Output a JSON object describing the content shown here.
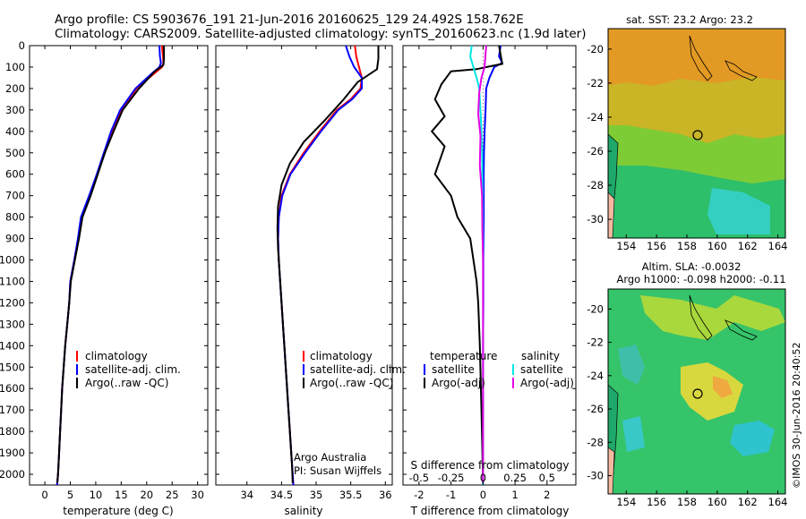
{
  "header": {
    "line1": "Argo profile: CS 5903676_191 21-Jun-2016 20160625_129 24.492S 158.762E",
    "line2": "Climatology: CARS2009. Satellite-adjusted climatology: synTS_20160623.nc (1.9d later)"
  },
  "colors": {
    "climatology": "#ff0000",
    "satellite": "#0000ff",
    "argo": "#000000",
    "sal_satellite": "#00e5e5",
    "sal_argo": "#e600e6"
  },
  "depth_ticks": [
    "0",
    "100",
    "200",
    "300",
    "400",
    "500",
    "600",
    "700",
    "800",
    "900",
    "1000",
    "1100",
    "1200",
    "1300",
    "1400",
    "1500",
    "1600",
    "1700",
    "1800",
    "1900",
    "2000"
  ],
  "chart_data": [
    {
      "type": "line",
      "xlabel": "temperature (deg C)",
      "xticks": [
        "0",
        "5",
        "10",
        "15",
        "20",
        "25",
        "30"
      ],
      "xlim": [
        -3,
        32
      ],
      "ylim": [
        0,
        2050
      ],
      "y_reversed": true,
      "legend": {
        "placement": "lower-left",
        "entries": [
          "climatology",
          "satellite-adj. clim.",
          "Argo(..raw -QC)"
        ]
      },
      "series": [
        {
          "name": "climatology",
          "x": [
            23.0,
            23.2,
            23.3,
            23.0,
            21.5,
            18.0,
            15.0,
            13.2,
            11.8,
            10.3,
            8.8,
            7.2,
            6.6,
            5.8,
            5.0,
            4.8,
            4.4,
            4.0,
            3.7,
            3.4,
            3.2,
            3.0,
            2.8,
            2.6,
            2.4
          ],
          "y": [
            0,
            50,
            80,
            100,
            130,
            200,
            300,
            400,
            500,
            600,
            700,
            800,
            900,
            1000,
            1100,
            1200,
            1300,
            1400,
            1500,
            1600,
            1700,
            1800,
            1900,
            2000,
            2050
          ]
        },
        {
          "name": "satellite-adj. clim.",
          "x": [
            22.5,
            22.6,
            22.8,
            22.5,
            21.0,
            17.8,
            14.8,
            13.0,
            11.6,
            10.2,
            8.7,
            7.1,
            6.5,
            5.8,
            5.0,
            4.8,
            4.4,
            4.0,
            3.7,
            3.4,
            3.2,
            3.0,
            2.8,
            2.6,
            2.4
          ],
          "y": [
            0,
            50,
            80,
            100,
            130,
            200,
            300,
            400,
            500,
            600,
            700,
            800,
            900,
            1000,
            1100,
            1200,
            1300,
            1400,
            1500,
            1600,
            1700,
            1800,
            1900,
            2000,
            2050
          ]
        },
        {
          "name": "Argo(..raw -QC)",
          "x": [
            23.4,
            23.4,
            23.3,
            21.6,
            18.5,
            15.3,
            13.5,
            11.8,
            10.4,
            9.0,
            7.4,
            6.7,
            5.9,
            5.1,
            4.8,
            4.4,
            4.0,
            3.7,
            3.4,
            3.2,
            3.0,
            2.8,
            2.6,
            2.45
          ],
          "y": [
            0,
            60,
            90,
            120,
            200,
            300,
            400,
            500,
            600,
            700,
            800,
            900,
            1000,
            1100,
            1200,
            1300,
            1400,
            1500,
            1600,
            1700,
            1800,
            1900,
            2000,
            2040
          ]
        }
      ]
    },
    {
      "type": "line",
      "xlabel": "salinity",
      "xticks": [
        "34",
        "34.5",
        "35",
        "35.5",
        "36"
      ],
      "xlim": [
        33.55,
        36.1
      ],
      "ylim": [
        0,
        2050
      ],
      "y_reversed": true,
      "legend": {
        "placement": "lower-right",
        "entries": [
          "climatology",
          "satellite-adj. clim.",
          "Argo(..raw -QC)"
        ]
      },
      "annotations": [
        "Argo Australia",
        "PI: Susan Wijffels"
      ],
      "series": [
        {
          "name": "climatology",
          "x": [
            35.56,
            35.58,
            35.62,
            35.66,
            35.64,
            35.5,
            35.3,
            35.05,
            34.82,
            34.62,
            34.5,
            34.46,
            34.45,
            34.46,
            34.48,
            34.5,
            34.52,
            34.54,
            34.56,
            34.58,
            34.6,
            34.62,
            34.64,
            34.66,
            34.67
          ],
          "y": [
            0,
            50,
            100,
            150,
            200,
            250,
            300,
            400,
            500,
            600,
            700,
            800,
            900,
            1000,
            1100,
            1200,
            1300,
            1400,
            1500,
            1600,
            1700,
            1800,
            1900,
            2000,
            2050
          ]
        },
        {
          "name": "satellite-adj. clim.",
          "x": [
            35.43,
            35.48,
            35.55,
            35.66,
            35.66,
            35.52,
            35.32,
            35.07,
            34.84,
            34.63,
            34.51,
            34.46,
            34.45,
            34.46,
            34.48,
            34.5,
            34.52,
            34.54,
            34.56,
            34.58,
            34.6,
            34.62,
            34.64,
            34.66,
            34.67
          ],
          "y": [
            0,
            50,
            100,
            150,
            200,
            250,
            300,
            400,
            500,
            600,
            700,
            800,
            900,
            1000,
            1100,
            1200,
            1300,
            1400,
            1500,
            1600,
            1700,
            1800,
            1900,
            2000,
            2050
          ]
        },
        {
          "name": "Argo(..raw -QC)",
          "x": [
            35.9,
            35.9,
            35.88,
            35.6,
            35.4,
            35.12,
            34.82,
            34.62,
            34.5,
            34.45,
            34.44,
            34.45,
            34.47,
            34.49,
            34.51,
            34.53,
            34.55,
            34.57,
            34.59,
            34.61,
            34.63,
            34.65,
            34.66
          ],
          "y": [
            0,
            60,
            110,
            170,
            250,
            350,
            450,
            550,
            650,
            750,
            850,
            950,
            1050,
            1150,
            1250,
            1350,
            1450,
            1550,
            1650,
            1750,
            1850,
            1950,
            2040
          ]
        }
      ]
    },
    {
      "type": "line",
      "xlabel": "T difference from climatology",
      "xlabel_top": "S difference from climatology",
      "xticks": [
        "-2",
        "-1",
        "0",
        "1",
        "2"
      ],
      "xticks_top": [
        "-0.5",
        "-0.25",
        "0",
        "0.25",
        "0.5"
      ],
      "xlim": [
        -2.5,
        2.9
      ],
      "ylim": [
        0,
        2050
      ],
      "y_reversed": true,
      "legend": {
        "placement": "lower",
        "entries": [
          "temperature",
          "satellite",
          "Argo(-adj)",
          "salinity",
          "satellite",
          "Argo(-adj)"
        ]
      },
      "series": [
        {
          "name": "satellite",
          "group": "temperature",
          "x": [
            0.55,
            0.5,
            0.6,
            0.35,
            0.2,
            0.1,
            0.08,
            0.05,
            0.03,
            0.02,
            0.02,
            0.01,
            0.01,
            0.0,
            0.0,
            0.0,
            0.0,
            0.0,
            0.0
          ],
          "y": [
            0,
            50,
            80,
            100,
            150,
            200,
            300,
            400,
            500,
            600,
            800,
            1000,
            1200,
            1400,
            1600,
            1800,
            1900,
            2000,
            2050
          ]
        },
        {
          "name": "Argo(-adj)",
          "group": "temperature",
          "x": [
            0.5,
            0.6,
            0.1,
            -0.2,
            -1.0,
            -1.3,
            -1.5,
            -1.2,
            -1.6,
            -1.2,
            -1.5,
            -1.0,
            -0.8,
            -0.4,
            -0.2,
            -0.15,
            -0.1,
            -0.05,
            0.0
          ],
          "y": [
            0,
            85,
            100,
            110,
            120,
            180,
            250,
            330,
            400,
            470,
            600,
            700,
            800,
            900,
            1100,
            1200,
            1400,
            1700,
            2040
          ]
        },
        {
          "name": "satellite",
          "group": "salinity",
          "x": [
            -0.35,
            -0.4,
            -0.3,
            -0.2,
            -0.12,
            -0.08,
            -0.05,
            -0.03,
            -0.02,
            -0.01,
            0.0,
            0.0,
            0.0,
            0.0
          ],
          "y": [
            0,
            50,
            100,
            150,
            200,
            300,
            400,
            500,
            600,
            800,
            1000,
            1400,
            1800,
            2050
          ]
        },
        {
          "name": "Argo(-adj)",
          "group": "salinity",
          "x": [
            0.1,
            0.05,
            -0.05,
            -0.12,
            -0.15,
            -0.08,
            -0.1,
            -0.03,
            -0.02,
            0.0,
            0.0,
            0.0,
            0.0
          ],
          "y": [
            0,
            100,
            150,
            220,
            320,
            420,
            560,
            700,
            850,
            1000,
            1300,
            1700,
            2040
          ]
        }
      ]
    },
    {
      "type": "heatmap",
      "title": "sat. SST: 23.2 Argo: 23.2",
      "xticks": [
        "154",
        "156",
        "158",
        "160",
        "162",
        "164"
      ],
      "yticks": [
        "-20",
        "-22",
        "-24",
        "-26",
        "-28",
        "-30"
      ],
      "xlim": [
        152.8,
        164.5
      ],
      "ylim": [
        -31.1,
        -18.8
      ]
    },
    {
      "type": "heatmap",
      "title": "Altim. SLA: -0.0032",
      "subtitle": "Argo h1000: -0.098 h2000: -0.11",
      "xticks": [
        "154",
        "156",
        "158",
        "160",
        "162",
        "164"
      ],
      "yticks": [
        "-20",
        "-22",
        "-24",
        "-26",
        "-28",
        "-30"
      ],
      "xlim": [
        152.8,
        164.5
      ],
      "ylim": [
        -31.1,
        -18.8
      ]
    }
  ],
  "footer": {
    "watermark": "©IMOS 30-Jun-2016 20:40:52"
  }
}
